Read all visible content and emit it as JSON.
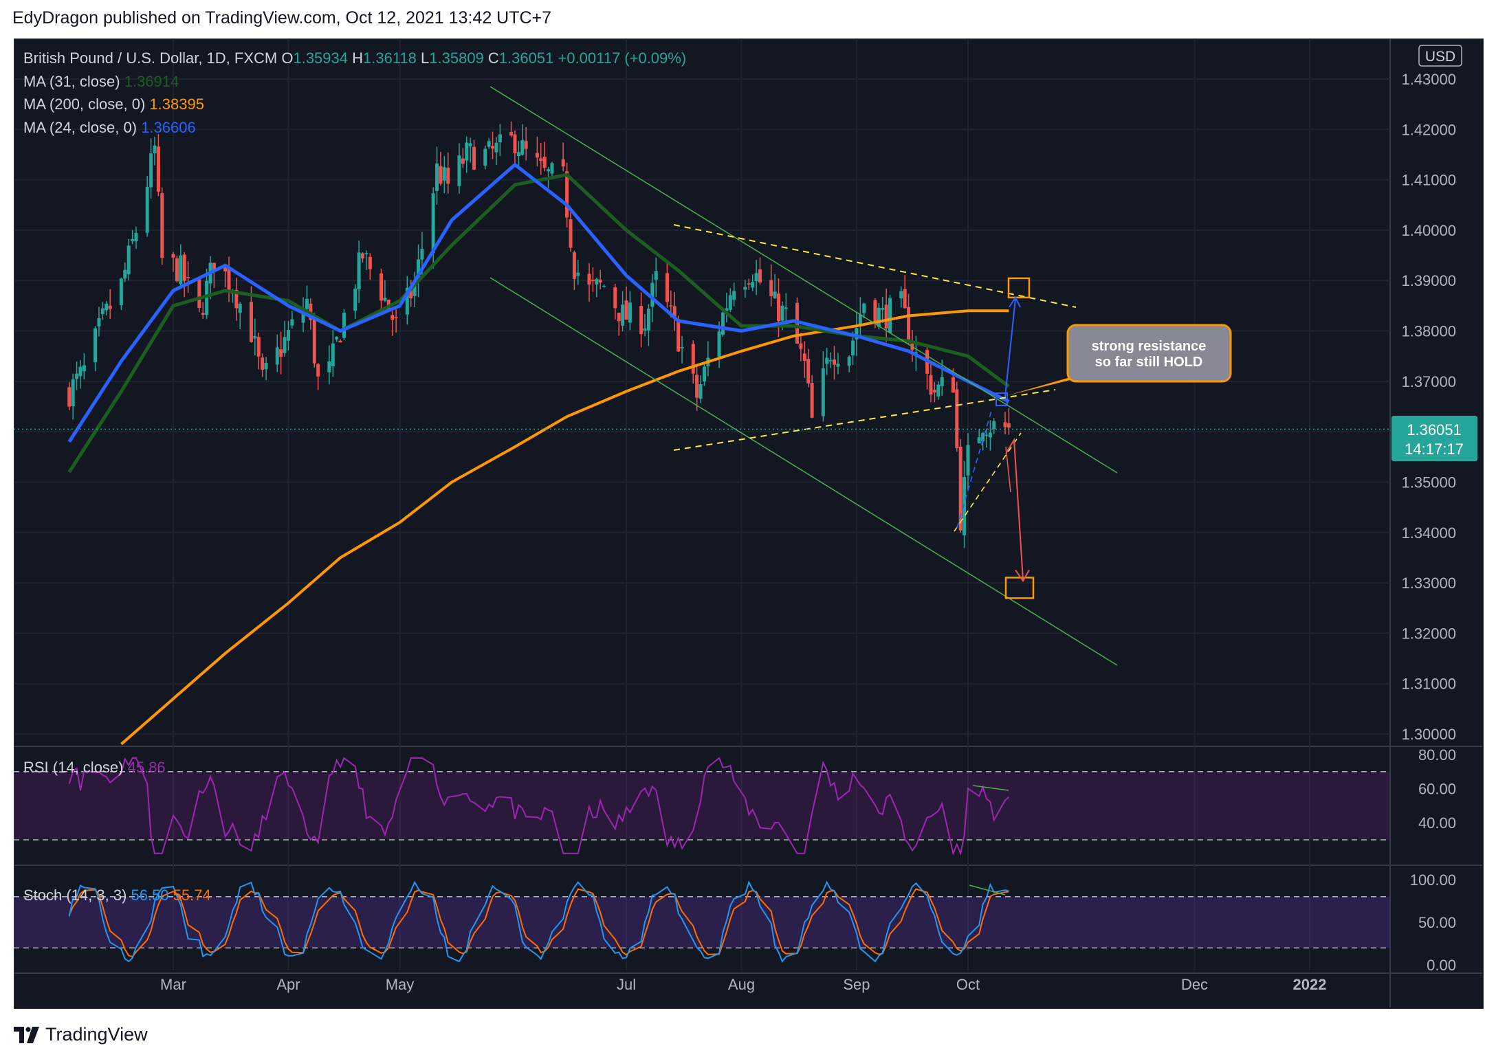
{
  "header": {
    "published_by": "EdyDragon published on TradingView.com, Oct 12, 2021 13:42 UTC+7"
  },
  "footer": {
    "brand": "TradingView"
  },
  "colors": {
    "background": "#131722",
    "bull": "#26a69a",
    "bear": "#ef5350",
    "ma31": "#1b5e20",
    "ma200": "#ff9800",
    "ma24": "#2962ff",
    "rsi": "#9c27b0",
    "stoch_k": "#2196f3",
    "stoch_d": "#ff6d00",
    "annotation_trend": "#4caf50",
    "annotation_dashed": "#ffeb3b"
  },
  "legend": {
    "symbol": "British Pound / U.S. Dollar, 1D, FXCM",
    "o_label": "O",
    "o": "1.35934",
    "h_label": "H",
    "h": "1.36118",
    "l_label": "L",
    "l": "1.35809",
    "c_label": "C",
    "c": "1.36051",
    "change": "+0.00117 (+0.09%)",
    "ma31_label": "MA (31, close)",
    "ma31": "1.36914",
    "ma200_label": "MA (200, close, 0)",
    "ma200": "1.38395",
    "ma24_label": "MA (24, close, 0)",
    "ma24": "1.36606"
  },
  "currency": "USD",
  "last_price": {
    "price": "1.36051",
    "countdown": "14:17:17"
  },
  "annotation": {
    "line1": "strong resistance",
    "line2": "so far still HOLD"
  },
  "rsi_panel": {
    "label": "RSI (14, close)",
    "value": "45.86",
    "ticks": [
      "80.00",
      "60.00",
      "40.00"
    ]
  },
  "stoch_panel": {
    "label": "Stoch (14, 3, 3)",
    "k": "56.50",
    "d": "55.74",
    "ticks": [
      "100.00",
      "50.00",
      "0.00"
    ]
  },
  "chart_data": {
    "type": "candlestick",
    "title": "British Pound / U.S. Dollar, 1D, FXCM",
    "x_ticks": [
      "Mar",
      "Apr",
      "May",
      "Jul",
      "Aug",
      "Sep",
      "Oct",
      "Dec",
      "2022"
    ],
    "y_ticks": [
      "1.43000",
      "1.42000",
      "1.41000",
      "1.40000",
      "1.39000",
      "1.38000",
      "1.37000",
      "1.36000",
      "1.35000",
      "1.34000",
      "1.33000",
      "1.32000",
      "1.31000",
      "1.30000"
    ],
    "ylim": [
      1.2975,
      1.4345
    ],
    "price_path": [
      [
        "2021-02-01",
        1.368
      ],
      [
        "2021-02-05",
        1.372
      ],
      [
        "2021-02-10",
        1.382
      ],
      [
        "2021-02-15",
        1.389
      ],
      [
        "2021-02-19",
        1.4
      ],
      [
        "2021-02-24",
        1.416
      ],
      [
        "2021-02-26",
        1.394
      ],
      [
        "2021-03-03",
        1.392
      ],
      [
        "2021-03-08",
        1.383
      ],
      [
        "2021-03-12",
        1.394
      ],
      [
        "2021-03-17",
        1.389
      ],
      [
        "2021-03-22",
        1.38
      ],
      [
        "2021-03-25",
        1.37
      ],
      [
        "2021-03-31",
        1.378
      ],
      [
        "2021-04-06",
        1.386
      ],
      [
        "2021-04-09",
        1.37
      ],
      [
        "2021-04-12",
        1.372
      ],
      [
        "2021-04-16",
        1.383
      ],
      [
        "2021-04-21",
        1.395
      ],
      [
        "2021-04-26",
        1.388
      ],
      [
        "2021-04-30",
        1.381
      ],
      [
        "2021-05-05",
        1.389
      ],
      [
        "2021-05-11",
        1.412
      ],
      [
        "2021-05-14",
        1.409
      ],
      [
        "2021-05-19",
        1.415
      ],
      [
        "2021-05-25",
        1.415
      ],
      [
        "2021-06-01",
        1.418
      ],
      [
        "2021-06-04",
        1.415
      ],
      [
        "2021-06-09",
        1.411
      ],
      [
        "2021-06-14",
        1.41
      ],
      [
        "2021-06-17",
        1.393
      ],
      [
        "2021-06-21",
        1.388
      ],
      [
        "2021-06-25",
        1.389
      ],
      [
        "2021-06-30",
        1.383
      ],
      [
        "2021-07-06",
        1.382
      ],
      [
        "2021-07-09",
        1.39
      ],
      [
        "2021-07-14",
        1.381
      ],
      [
        "2021-07-20",
        1.367
      ],
      [
        "2021-07-26",
        1.381
      ],
      [
        "2021-07-30",
        1.39
      ],
      [
        "2021-08-04",
        1.392
      ],
      [
        "2021-08-10",
        1.385
      ],
      [
        "2021-08-13",
        1.383
      ],
      [
        "2021-08-18",
        1.373
      ],
      [
        "2021-08-20",
        1.362
      ],
      [
        "2021-08-25",
        1.376
      ],
      [
        "2021-08-30",
        1.376
      ],
      [
        "2021-09-03",
        1.386
      ],
      [
        "2021-09-08",
        1.383
      ],
      [
        "2021-09-13",
        1.385
      ],
      [
        "2021-09-17",
        1.375
      ],
      [
        "2021-09-22",
        1.368
      ],
      [
        "2021-09-27",
        1.37
      ],
      [
        "2021-09-29",
        1.343
      ],
      [
        "2021-10-01",
        1.355
      ],
      [
        "2021-10-05",
        1.362
      ],
      [
        "2021-10-08",
        1.361
      ],
      [
        "2021-10-12",
        1.3605
      ]
    ],
    "series": [
      {
        "name": "MA (31, close)",
        "values": [
          [
            "2021-02-01",
            1.352
          ],
          [
            "2021-02-15",
            1.368
          ],
          [
            "2021-03-01",
            1.385
          ],
          [
            "2021-03-15",
            1.388
          ],
          [
            "2021-04-01",
            1.386
          ],
          [
            "2021-04-15",
            1.38
          ],
          [
            "2021-05-01",
            1.386
          ],
          [
            "2021-05-15",
            1.397
          ],
          [
            "2021-06-01",
            1.409
          ],
          [
            "2021-06-15",
            1.411
          ],
          [
            "2021-07-01",
            1.4
          ],
          [
            "2021-07-15",
            1.392
          ],
          [
            "2021-08-01",
            1.381
          ],
          [
            "2021-08-15",
            1.381
          ],
          [
            "2021-09-01",
            1.379
          ],
          [
            "2021-09-15",
            1.378
          ],
          [
            "2021-10-01",
            1.375
          ],
          [
            "2021-10-12",
            1.369
          ]
        ]
      },
      {
        "name": "MA (200, close, 0)",
        "values": [
          [
            "2021-02-15",
            1.298
          ],
          [
            "2021-03-01",
            1.307
          ],
          [
            "2021-03-15",
            1.316
          ],
          [
            "2021-04-01",
            1.326
          ],
          [
            "2021-04-15",
            1.335
          ],
          [
            "2021-05-01",
            1.342
          ],
          [
            "2021-05-15",
            1.35
          ],
          [
            "2021-06-01",
            1.357
          ],
          [
            "2021-06-15",
            1.363
          ],
          [
            "2021-07-01",
            1.368
          ],
          [
            "2021-07-15",
            1.372
          ],
          [
            "2021-08-01",
            1.376
          ],
          [
            "2021-08-15",
            1.379
          ],
          [
            "2021-09-01",
            1.381
          ],
          [
            "2021-09-15",
            1.383
          ],
          [
            "2021-10-01",
            1.384
          ],
          [
            "2021-10-12",
            1.384
          ]
        ]
      },
      {
        "name": "MA (24, close, 0)",
        "values": [
          [
            "2021-02-01",
            1.358
          ],
          [
            "2021-02-15",
            1.374
          ],
          [
            "2021-03-01",
            1.388
          ],
          [
            "2021-03-15",
            1.393
          ],
          [
            "2021-04-01",
            1.385
          ],
          [
            "2021-04-15",
            1.38
          ],
          [
            "2021-05-01",
            1.385
          ],
          [
            "2021-05-15",
            1.402
          ],
          [
            "2021-06-01",
            1.413
          ],
          [
            "2021-06-15",
            1.405
          ],
          [
            "2021-07-01",
            1.391
          ],
          [
            "2021-07-15",
            1.382
          ],
          [
            "2021-08-01",
            1.38
          ],
          [
            "2021-08-15",
            1.382
          ],
          [
            "2021-09-01",
            1.379
          ],
          [
            "2021-09-15",
            1.376
          ],
          [
            "2021-10-01",
            1.37
          ],
          [
            "2021-10-12",
            1.366
          ]
        ]
      }
    ],
    "targets": {
      "up": 1.388,
      "down": 1.329
    }
  }
}
